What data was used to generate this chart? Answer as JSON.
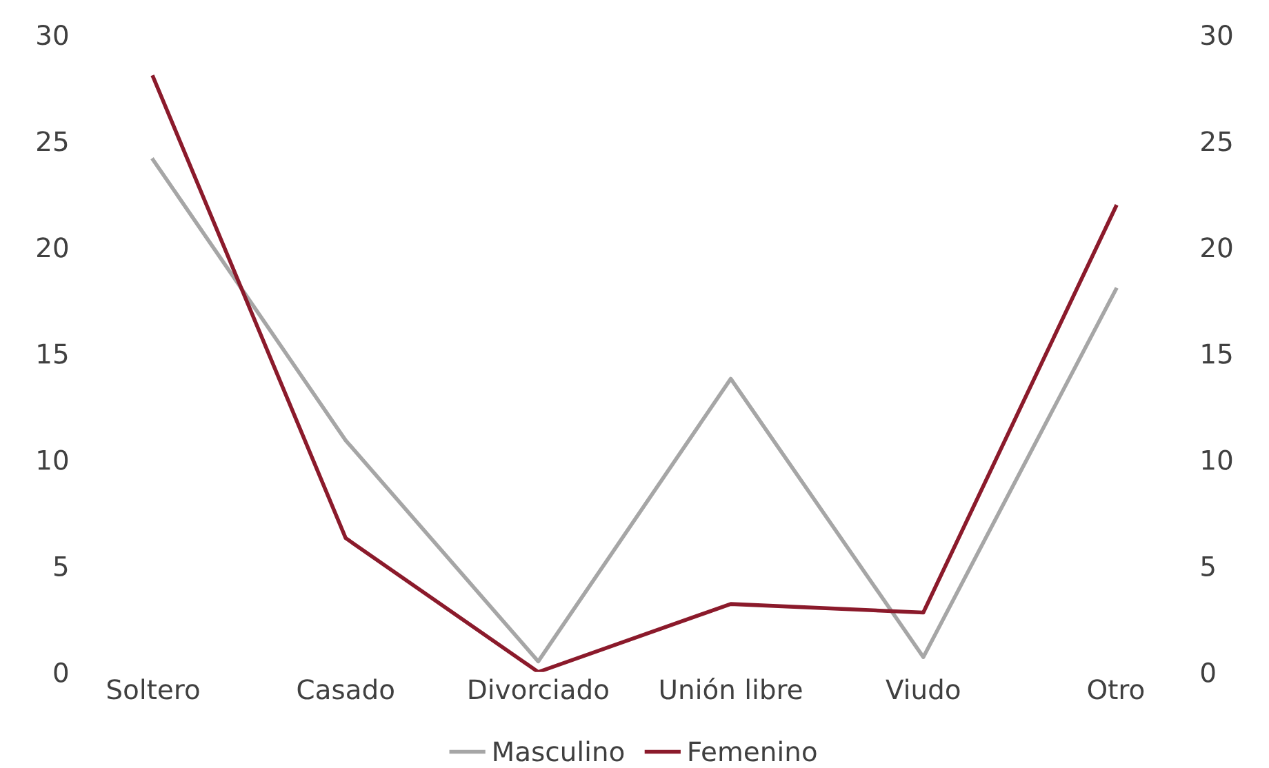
{
  "chart_data": {
    "type": "line",
    "categories": [
      "Soltero",
      "Casado",
      "Divorciado",
      "Unión libre",
      "Viudo",
      "Otro"
    ],
    "series": [
      {
        "name": "Masculino",
        "color": "#a6a6a6",
        "values": [
          24.1,
          10.9,
          0.5,
          13.8,
          0.7,
          18
        ]
      },
      {
        "name": "Femenino",
        "color": "#8b1a2b",
        "values": [
          28,
          6.3,
          0,
          3.2,
          2.8,
          21.9
        ]
      }
    ],
    "ylim": [
      0,
      30
    ],
    "yticks": [
      0,
      5,
      10,
      15,
      20,
      25,
      30
    ],
    "y2lim": [
      0,
      30
    ],
    "y2ticks": [
      0,
      5,
      10,
      15,
      20,
      25,
      30
    ],
    "grid": false,
    "legend": "bottom",
    "marker": "none",
    "line_style": "solid"
  }
}
